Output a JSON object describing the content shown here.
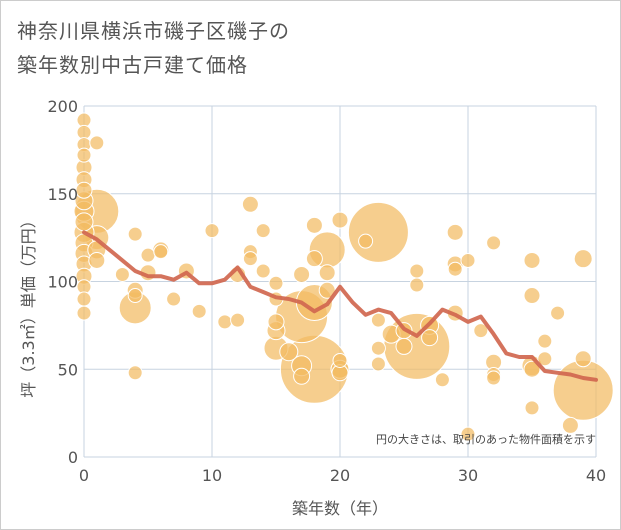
{
  "title_line1": "神奈川県横浜市磯子区磯子の",
  "title_line2": "築年数別中古戸建て価格",
  "chart_data": {
    "type": "scatter",
    "xlabel": "築年数（年）",
    "ylabel": "坪（3.3㎡）単価（万円）",
    "xlim": [
      0,
      40
    ],
    "ylim": [
      0,
      200
    ],
    "x_ticks": [
      "0",
      "10",
      "20",
      "30",
      "40"
    ],
    "y_ticks": [
      "0",
      "50",
      "100",
      "150",
      "200"
    ],
    "grid": true,
    "note": "円の大きさは、取引のあった物件面積を示す",
    "colors": {
      "bubble": "#f2bb63",
      "bubble_stroke": "#ffffff",
      "trend": "#d0674f",
      "grid": "#c7d3e0"
    },
    "points": [
      {
        "x": 0,
        "y": 192,
        "s": 7
      },
      {
        "x": 0,
        "y": 185,
        "s": 7
      },
      {
        "x": 0,
        "y": 178,
        "s": 7
      },
      {
        "x": 0,
        "y": 172,
        "s": 7
      },
      {
        "x": 0,
        "y": 165,
        "s": 8
      },
      {
        "x": 0,
        "y": 158,
        "s": 8
      },
      {
        "x": 0,
        "y": 152,
        "s": 8
      },
      {
        "x": 0,
        "y": 146,
        "s": 9
      },
      {
        "x": 0,
        "y": 140,
        "s": 10
      },
      {
        "x": 0,
        "y": 134,
        "s": 9
      },
      {
        "x": 0,
        "y": 128,
        "s": 10
      },
      {
        "x": 0,
        "y": 122,
        "s": 9
      },
      {
        "x": 0,
        "y": 116,
        "s": 9
      },
      {
        "x": 0,
        "y": 110,
        "s": 8
      },
      {
        "x": 0,
        "y": 103,
        "s": 8
      },
      {
        "x": 0,
        "y": 97,
        "s": 7
      },
      {
        "x": 0,
        "y": 90,
        "s": 7
      },
      {
        "x": 0,
        "y": 82,
        "s": 7
      },
      {
        "x": 1,
        "y": 179,
        "s": 7
      },
      {
        "x": 1,
        "y": 140,
        "s": 22
      },
      {
        "x": 1,
        "y": 125,
        "s": 12
      },
      {
        "x": 1,
        "y": 118,
        "s": 9
      },
      {
        "x": 1,
        "y": 112,
        "s": 8
      },
      {
        "x": 3,
        "y": 104,
        "s": 7
      },
      {
        "x": 4,
        "y": 127,
        "s": 7
      },
      {
        "x": 4,
        "y": 95,
        "s": 8
      },
      {
        "x": 4,
        "y": 92,
        "s": 7
      },
      {
        "x": 4,
        "y": 48,
        "s": 7
      },
      {
        "x": 4,
        "y": 85,
        "s": 16
      },
      {
        "x": 5,
        "y": 105,
        "s": 8
      },
      {
        "x": 5,
        "y": 115,
        "s": 7
      },
      {
        "x": 6,
        "y": 118,
        "s": 8
      },
      {
        "x": 6,
        "y": 117,
        "s": 7
      },
      {
        "x": 7,
        "y": 90,
        "s": 7
      },
      {
        "x": 8,
        "y": 106,
        "s": 8
      },
      {
        "x": 9,
        "y": 83,
        "s": 7
      },
      {
        "x": 10,
        "y": 129,
        "s": 7
      },
      {
        "x": 11,
        "y": 77,
        "s": 7
      },
      {
        "x": 12,
        "y": 78,
        "s": 7
      },
      {
        "x": 12,
        "y": 104,
        "s": 8
      },
      {
        "x": 13,
        "y": 144,
        "s": 8
      },
      {
        "x": 13,
        "y": 117,
        "s": 7
      },
      {
        "x": 13,
        "y": 113,
        "s": 7
      },
      {
        "x": 14,
        "y": 106,
        "s": 7
      },
      {
        "x": 14,
        "y": 129,
        "s": 7
      },
      {
        "x": 15,
        "y": 99,
        "s": 7
      },
      {
        "x": 15,
        "y": 90,
        "s": 7
      },
      {
        "x": 15,
        "y": 77,
        "s": 8
      },
      {
        "x": 15,
        "y": 72,
        "s": 9
      },
      {
        "x": 15,
        "y": 62,
        "s": 12
      },
      {
        "x": 16,
        "y": 60,
        "s": 9
      },
      {
        "x": 17,
        "y": 104,
        "s": 8
      },
      {
        "x": 17,
        "y": 80,
        "s": 26
      },
      {
        "x": 17,
        "y": 46,
        "s": 8
      },
      {
        "x": 17,
        "y": 52,
        "s": 10
      },
      {
        "x": 18,
        "y": 132,
        "s": 8
      },
      {
        "x": 18,
        "y": 113,
        "s": 8
      },
      {
        "x": 18,
        "y": 88,
        "s": 18
      },
      {
        "x": 18,
        "y": 50,
        "s": 34
      },
      {
        "x": 19,
        "y": 118,
        "s": 18
      },
      {
        "x": 19,
        "y": 105,
        "s": 8
      },
      {
        "x": 19,
        "y": 95,
        "s": 8
      },
      {
        "x": 20,
        "y": 135,
        "s": 8
      },
      {
        "x": 20,
        "y": 55,
        "s": 7
      },
      {
        "x": 20,
        "y": 50,
        "s": 9
      },
      {
        "x": 20,
        "y": 48,
        "s": 8
      },
      {
        "x": 22,
        "y": 123,
        "s": 7
      },
      {
        "x": 23,
        "y": 128,
        "s": 30
      },
      {
        "x": 23,
        "y": 78,
        "s": 7
      },
      {
        "x": 23,
        "y": 62,
        "s": 7
      },
      {
        "x": 23,
        "y": 53,
        "s": 7
      },
      {
        "x": 24,
        "y": 70,
        "s": 9
      },
      {
        "x": 25,
        "y": 72,
        "s": 8
      },
      {
        "x": 25,
        "y": 63,
        "s": 8
      },
      {
        "x": 26,
        "y": 106,
        "s": 7
      },
      {
        "x": 26,
        "y": 98,
        "s": 7
      },
      {
        "x": 26,
        "y": 63,
        "s": 33
      },
      {
        "x": 27,
        "y": 75,
        "s": 9
      },
      {
        "x": 27,
        "y": 68,
        "s": 8
      },
      {
        "x": 28,
        "y": 44,
        "s": 7
      },
      {
        "x": 29,
        "y": 128,
        "s": 8
      },
      {
        "x": 29,
        "y": 110,
        "s": 8
      },
      {
        "x": 29,
        "y": 107,
        "s": 7
      },
      {
        "x": 29,
        "y": 82,
        "s": 8
      },
      {
        "x": 30,
        "y": 112,
        "s": 7
      },
      {
        "x": 30,
        "y": 13,
        "s": 7
      },
      {
        "x": 31,
        "y": 72,
        "s": 7
      },
      {
        "x": 32,
        "y": 122,
        "s": 7
      },
      {
        "x": 32,
        "y": 54,
        "s": 8
      },
      {
        "x": 32,
        "y": 47,
        "s": 7
      },
      {
        "x": 32,
        "y": 45,
        "s": 7
      },
      {
        "x": 35,
        "y": 112,
        "s": 8
      },
      {
        "x": 35,
        "y": 92,
        "s": 8
      },
      {
        "x": 35,
        "y": 52,
        "s": 10
      },
      {
        "x": 35,
        "y": 50,
        "s": 8
      },
      {
        "x": 35,
        "y": 28,
        "s": 7
      },
      {
        "x": 36,
        "y": 66,
        "s": 7
      },
      {
        "x": 36,
        "y": 56,
        "s": 7
      },
      {
        "x": 37,
        "y": 82,
        "s": 7
      },
      {
        "x": 38,
        "y": 18,
        "s": 8
      },
      {
        "x": 39,
        "y": 113,
        "s": 9
      },
      {
        "x": 39,
        "y": 56,
        "s": 8
      },
      {
        "x": 39,
        "y": 38,
        "s": 30
      }
    ],
    "trend": [
      {
        "x": 0,
        "y": 128
      },
      {
        "x": 1,
        "y": 124
      },
      {
        "x": 2,
        "y": 118
      },
      {
        "x": 3,
        "y": 112
      },
      {
        "x": 4,
        "y": 106
      },
      {
        "x": 5,
        "y": 103
      },
      {
        "x": 6,
        "y": 103
      },
      {
        "x": 7,
        "y": 101
      },
      {
        "x": 8,
        "y": 105
      },
      {
        "x": 9,
        "y": 99
      },
      {
        "x": 10,
        "y": 99
      },
      {
        "x": 11,
        "y": 101
      },
      {
        "x": 12,
        "y": 108
      },
      {
        "x": 13,
        "y": 97
      },
      {
        "x": 14,
        "y": 94
      },
      {
        "x": 15,
        "y": 91
      },
      {
        "x": 16,
        "y": 90
      },
      {
        "x": 17,
        "y": 88
      },
      {
        "x": 18,
        "y": 83
      },
      {
        "x": 19,
        "y": 87
      },
      {
        "x": 20,
        "y": 97
      },
      {
        "x": 21,
        "y": 88
      },
      {
        "x": 22,
        "y": 81
      },
      {
        "x": 23,
        "y": 84
      },
      {
        "x": 24,
        "y": 82
      },
      {
        "x": 25,
        "y": 73
      },
      {
        "x": 26,
        "y": 69
      },
      {
        "x": 27,
        "y": 76
      },
      {
        "x": 28,
        "y": 84
      },
      {
        "x": 29,
        "y": 81
      },
      {
        "x": 30,
        "y": 77
      },
      {
        "x": 31,
        "y": 80
      },
      {
        "x": 32,
        "y": 70
      },
      {
        "x": 33,
        "y": 59
      },
      {
        "x": 34,
        "y": 57
      },
      {
        "x": 35,
        "y": 57
      },
      {
        "x": 36,
        "y": 49
      },
      {
        "x": 37,
        "y": 48
      },
      {
        "x": 38,
        "y": 47
      },
      {
        "x": 39,
        "y": 45
      },
      {
        "x": 40,
        "y": 44
      }
    ]
  }
}
